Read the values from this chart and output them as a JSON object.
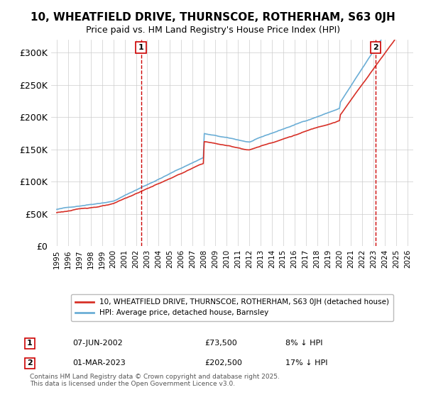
{
  "title": "10, WHEATFIELD DRIVE, THURNSCOE, ROTHERHAM, S63 0JH",
  "subtitle": "Price paid vs. HM Land Registry's House Price Index (HPI)",
  "hpi_label": "HPI: Average price, detached house, Barnsley",
  "price_label": "10, WHEATFIELD DRIVE, THURNSCOE, ROTHERHAM, S63 0JH (detached house)",
  "footnote": "Contains HM Land Registry data © Crown copyright and database right 2025.\nThis data is licensed under the Open Government Licence v3.0.",
  "marker1": {
    "date_num": 2002.44,
    "label": "1",
    "date_str": "07-JUN-2002",
    "price": "£73,500",
    "hpi_note": "8% ↓ HPI"
  },
  "marker2": {
    "date_num": 2023.17,
    "label": "2",
    "date_str": "01-MAR-2023",
    "price": "£202,500",
    "hpi_note": "17% ↓ HPI"
  },
  "ylim": [
    0,
    320000
  ],
  "xlim": [
    1994.5,
    2026.5
  ],
  "yticks": [
    0,
    50000,
    100000,
    150000,
    200000,
    250000,
    300000
  ],
  "ytick_labels": [
    "£0",
    "£50K",
    "£100K",
    "£150K",
    "£200K",
    "£250K",
    "£300K"
  ],
  "hpi_color": "#6baed6",
  "price_color": "#d73027",
  "marker_color": "#cc0000",
  "bg_color": "#ffffff",
  "grid_color": "#cccccc"
}
